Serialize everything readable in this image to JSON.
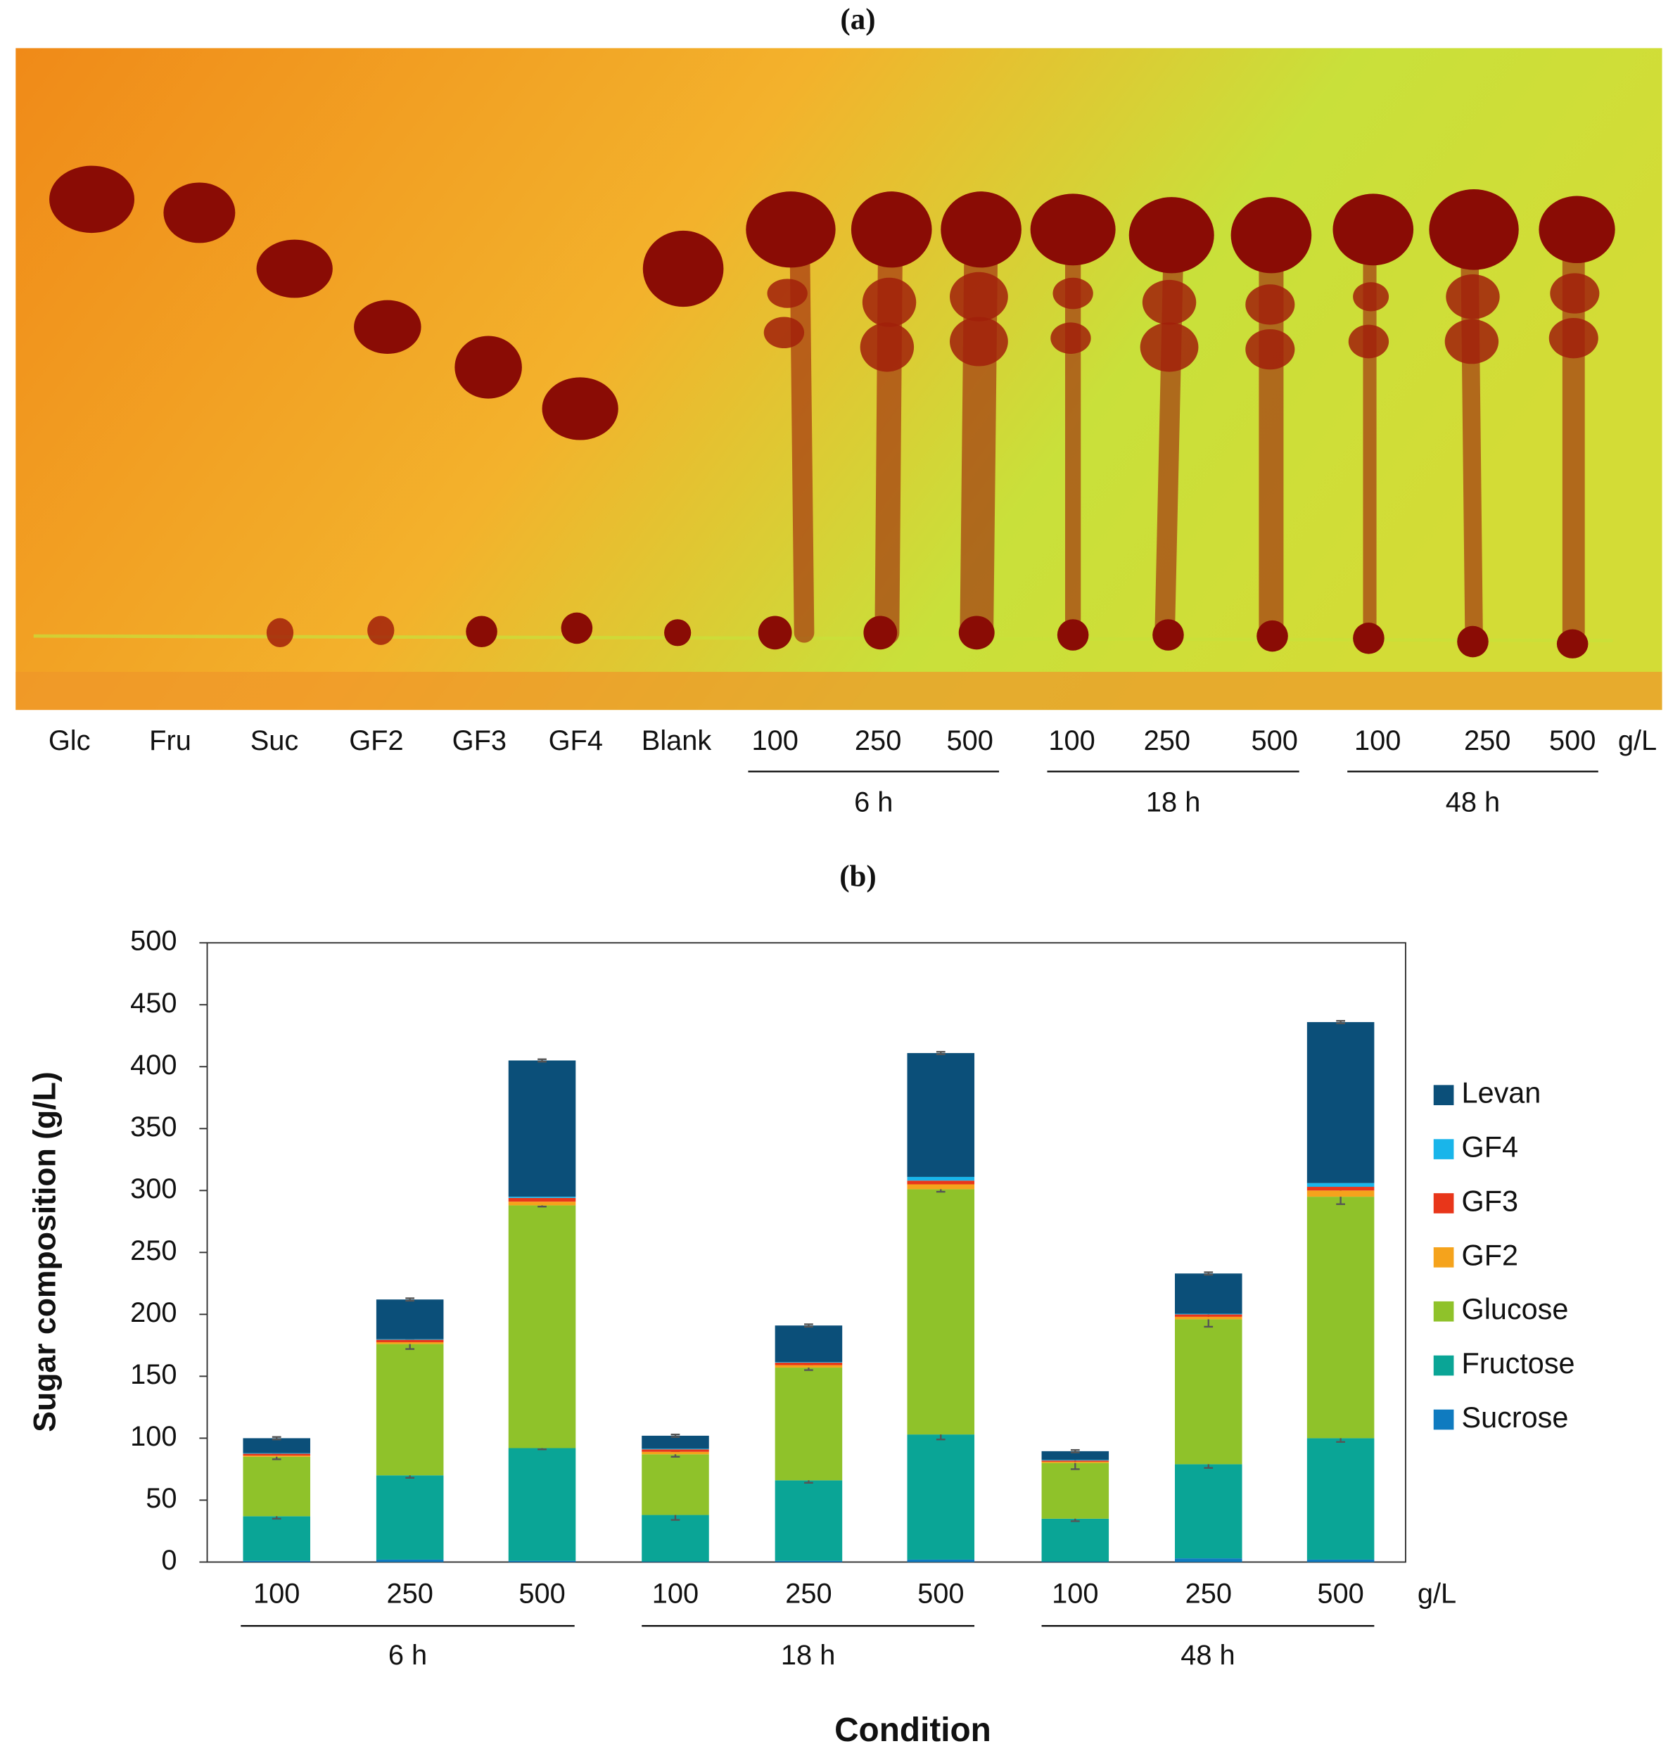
{
  "panel_a": {
    "label": "(a)",
    "lanes": [
      "Glc",
      "Fru",
      "Suc",
      "GF2",
      "GF3",
      "GF4",
      "Blank",
      "100",
      "250",
      "500",
      "100",
      "250",
      "500",
      "100",
      "250",
      "500"
    ],
    "unit": "g/L",
    "groups": [
      "6 h",
      "18 h",
      "48 h"
    ]
  },
  "chart_data": {
    "type": "bar",
    "stacked": true,
    "panel_label": "(b)",
    "x_label": "Condition",
    "y_label": "Sugar composition (g/L)",
    "categories": [
      "100",
      "250",
      "500",
      "100",
      "250",
      "500",
      "100",
      "250",
      "500"
    ],
    "unit": "g/L",
    "groups": [
      "6 h",
      "18 h",
      "48 h"
    ],
    "ylim": [
      0,
      500
    ],
    "yticks": [
      0,
      50,
      100,
      150,
      200,
      250,
      300,
      350,
      400,
      450,
      500
    ],
    "series": [
      {
        "name": "Sucrose",
        "color": "#0f7bc0",
        "values": [
          1,
          2,
          1,
          0.5,
          1,
          2,
          0.5,
          3,
          2
        ]
      },
      {
        "name": "Fructose",
        "color": "#0aa596",
        "values": [
          36,
          68,
          91,
          37.5,
          65,
          101,
          34.5,
          76,
          98
        ],
        "errors": [
          2,
          2,
          1,
          4,
          2,
          4,
          2,
          3,
          3
        ]
      },
      {
        "name": "Glucose",
        "color": "#8fc22a",
        "values": [
          48,
          106,
          196,
          49,
          91,
          198,
          45,
          117,
          195
        ],
        "errors": [
          2,
          4,
          1,
          2,
          2,
          2,
          5,
          6,
          6
        ]
      },
      {
        "name": "GF2",
        "color": "#f5a31c",
        "values": [
          1,
          1.5,
          3,
          2,
          2,
          4,
          1,
          2,
          5
        ]
      },
      {
        "name": "GF3",
        "color": "#e8361a",
        "values": [
          1.5,
          2,
          3,
          2,
          2,
          3,
          1,
          2,
          3
        ]
      },
      {
        "name": "GF4",
        "color": "#19b5ea",
        "values": [
          0.5,
          0.5,
          1,
          0.5,
          0.5,
          3,
          0.5,
          0.5,
          3
        ]
      },
      {
        "name": "Levan",
        "color": "#0b4f79",
        "values": [
          12,
          32,
          110,
          10.5,
          29.5,
          100,
          7,
          32.5,
          130
        ],
        "errors": [
          1,
          1,
          1,
          1,
          1,
          1,
          1,
          1,
          1
        ]
      }
    ]
  }
}
